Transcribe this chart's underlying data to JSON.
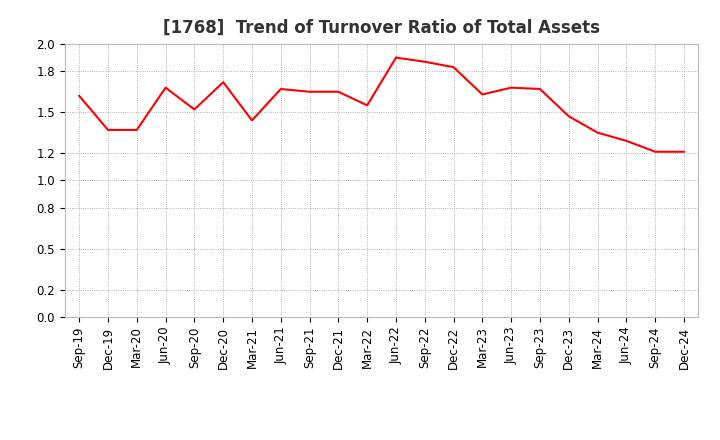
{
  "title": "[1768]  Trend of Turnover Ratio of Total Assets",
  "x_labels": [
    "Sep-19",
    "Dec-19",
    "Mar-20",
    "Jun-20",
    "Sep-20",
    "Dec-20",
    "Mar-21",
    "Jun-21",
    "Sep-21",
    "Dec-21",
    "Mar-22",
    "Jun-22",
    "Sep-22",
    "Dec-22",
    "Mar-23",
    "Jun-23",
    "Sep-23",
    "Dec-23",
    "Mar-24",
    "Jun-24",
    "Sep-24",
    "Dec-24"
  ],
  "y_values": [
    1.62,
    1.37,
    1.37,
    1.68,
    1.52,
    1.72,
    1.44,
    1.67,
    1.65,
    1.65,
    1.55,
    1.9,
    1.87,
    1.83,
    1.63,
    1.68,
    1.67,
    1.47,
    1.35,
    1.29,
    1.21,
    1.21
  ],
  "line_color": "#ff0000",
  "line_width": 1.5,
  "ylim": [
    0.0,
    2.0
  ],
  "yticks": [
    0.0,
    0.2,
    0.5,
    0.8,
    1.0,
    1.2,
    1.5,
    1.8,
    2.0
  ],
  "grid_color": "#999999",
  "background_color": "#ffffff",
  "title_fontsize": 12,
  "tick_fontsize": 8.5
}
